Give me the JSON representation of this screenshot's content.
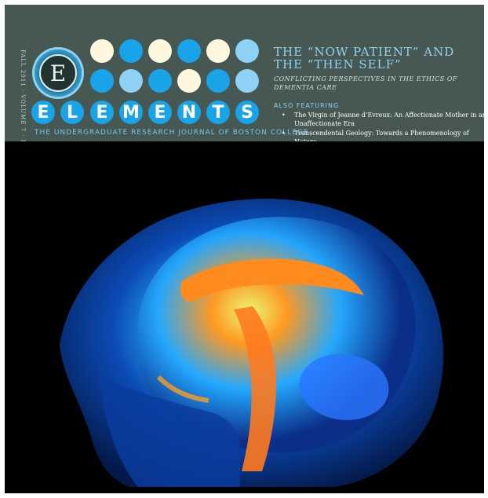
{
  "journal": {
    "logo_letter": "E",
    "title_letters": [
      "E",
      "L",
      "E",
      "M",
      "E",
      "N",
      "T",
      "S"
    ],
    "subtitle": "THE UNDERGRADUATE RESEARCH JOURNAL OF BOSTON COLLEGE",
    "issue_line": "FALL 2011 · VOLUME 7 · ISSUE 2"
  },
  "headline": "THE “NOW PATIENT” AND THE “THEN SELF”",
  "dek": "CONFLICTING PERSPECTIVES IN THE ETHICS OF DEMENTIA CARE",
  "also_featuring": {
    "label": "ALSO FEATURING",
    "items": [
      "The Virgin of Jeanne d’Evreux: An Affectionate Mother in an Unaffectionate Era",
      "Transcendental Geology: Towards a Phenomenology of Nature"
    ]
  },
  "colors": {
    "header_bg": "#475852",
    "accent_blue": "#19a3e8",
    "light_blue": "#8dd1f4",
    "cream": "#fff8df"
  },
  "image": {
    "icon": "brain-mri-image"
  }
}
